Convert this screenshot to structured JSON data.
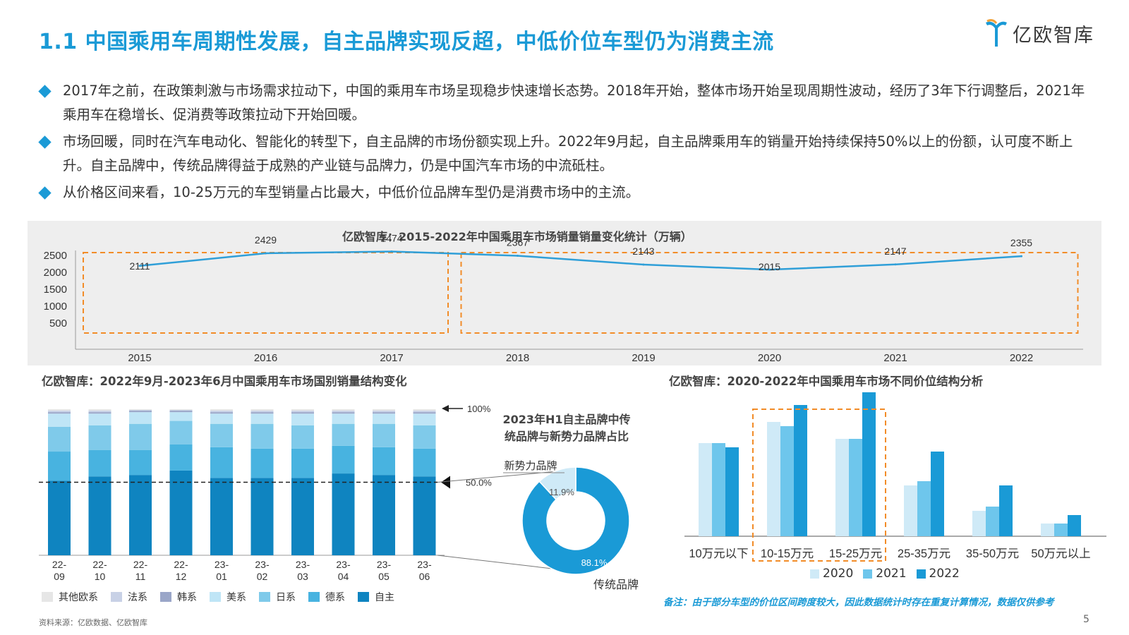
{
  "header": {
    "title": "1.1 中国乘用车周期性发展，自主品牌实现反超，中低价位车型仍为消费主流",
    "logo_text": "亿欧智库"
  },
  "bullets": [
    "2017年之前，在政策刺激与市场需求拉动下，中国的乘用车市场呈现稳步快速增长态势。2018年开始，整体市场开始呈现周期性波动，经历了3年下行调整后，2021年乘用车在稳增长、促消费等政策拉动下开始回暖。",
    "市场回暖，同时在汽车电动化、智能化的转型下，自主品牌的市场份额实现上升。2022年9月起，自主品牌乘用车的销量开始持续保持50%以上的份额，认可度不断上升。自主品牌中，传统品牌得益于成熟的产业链与品牌力，仍是中国汽车市场的中流砥柱。",
    "从价格区间来看，10-25万元的车型销量占比最大，中低价位品牌车型仍是消费市场中的主流。"
  ],
  "colors": {
    "accent": "#1a9ad6",
    "highlight_box": "#f28c28",
    "line": "#2f9fd8"
  },
  "chart_data": [
    {
      "type": "line",
      "title": "亿欧智库：2015-2022年中国乘用车市场销量销量变化统计（万辆）",
      "x": [
        "2015",
        "2016",
        "2017",
        "2018",
        "2019",
        "2020",
        "2021",
        "2022"
      ],
      "series": [
        {
          "values": [
            2111,
            2429,
            2474,
            2367,
            2143,
            2015,
            2147,
            2355
          ]
        }
      ],
      "y_ticks": [
        "2500",
        "2000",
        "1500",
        "1000",
        "500"
      ],
      "ylim": [
        0,
        2500
      ],
      "highlight_groups": [
        [
          "2015",
          "2017"
        ],
        [
          "2018",
          "2022"
        ]
      ]
    },
    {
      "type": "bar",
      "stacked": true,
      "title": "亿欧智库：2022年9月-2023年6月中国乘用车市场国别销量结构变化",
      "categories": [
        "22-09",
        "22-10",
        "22-11",
        "22-12",
        "23-01",
        "23-02",
        "23-03",
        "23-04",
        "23-05",
        "23-06"
      ],
      "series": [
        {
          "name": "自主",
          "color": "#0f84c0",
          "values": [
            51,
            54,
            55,
            58,
            53,
            53,
            53,
            56,
            55,
            54
          ]
        },
        {
          "name": "德系",
          "color": "#48b3e0",
          "values": [
            20,
            18,
            17,
            18,
            21,
            20,
            20,
            19,
            19,
            19
          ]
        },
        {
          "name": "日系",
          "color": "#7fcaea",
          "values": [
            17,
            17,
            18,
            16,
            16,
            17,
            16,
            15,
            16,
            16
          ]
        },
        {
          "name": "美系",
          "color": "#bfe5f6",
          "values": [
            9,
            8,
            8,
            6,
            7,
            7,
            8,
            7,
            7,
            8
          ]
        },
        {
          "name": "韩系",
          "color": "#9aa6c8",
          "values": [
            1,
            1,
            1,
            1,
            1,
            1,
            1,
            1,
            1,
            1
          ]
        },
        {
          "name": "法系",
          "color": "#c8d1e6",
          "values": [
            1,
            1,
            0.5,
            0.5,
            1,
            1,
            1,
            1,
            1,
            1
          ]
        },
        {
          "name": "其他欧系",
          "color": "#e6e6e6",
          "values": [
            1,
            1,
            0.5,
            0.5,
            1,
            1,
            1,
            1,
            1,
            1
          ]
        }
      ],
      "ylim": [
        0,
        100
      ],
      "annotations": [
        "100%",
        "50.0%"
      ]
    },
    {
      "type": "pie",
      "title": "2023年H1自主品牌中传统品牌与新势力品牌占比",
      "labels": [
        "传统品牌",
        "新势力品牌"
      ],
      "values": [
        88.1,
        11.9
      ],
      "value_labels": [
        "88.1%",
        "11.9%"
      ],
      "colors": [
        "#1a9ad6",
        "#cfeaf7"
      ]
    },
    {
      "type": "bar",
      "title": "亿欧智库：2020-2022年中国乘用车市场不同价位结构分析",
      "categories": [
        "10万元以下",
        "10-15万元",
        "15-25万元",
        "25-35万元",
        "35-50万元",
        "50万元以上"
      ],
      "series": [
        {
          "name": "2020",
          "color": "#cfeaf7",
          "values": [
            22,
            27,
            23,
            12,
            6,
            3
          ]
        },
        {
          "name": "2021",
          "color": "#6ec6ec",
          "values": [
            22,
            26,
            23,
            13,
            7,
            3
          ]
        },
        {
          "name": "2022",
          "color": "#1a9ad6",
          "values": [
            21,
            31,
            34,
            20,
            12,
            5
          ]
        }
      ],
      "ylim": [
        0,
        40
      ],
      "highlight_categories": [
        "10-15万元",
        "15-25万元"
      ]
    }
  ],
  "footer": {
    "note": "备注：由于部分车型的价位区间跨度较大，因此数据统计时存在重复计算情况，数据仅供参考",
    "source": "资料来源：亿欧数据、亿欧智库",
    "page": "5"
  }
}
